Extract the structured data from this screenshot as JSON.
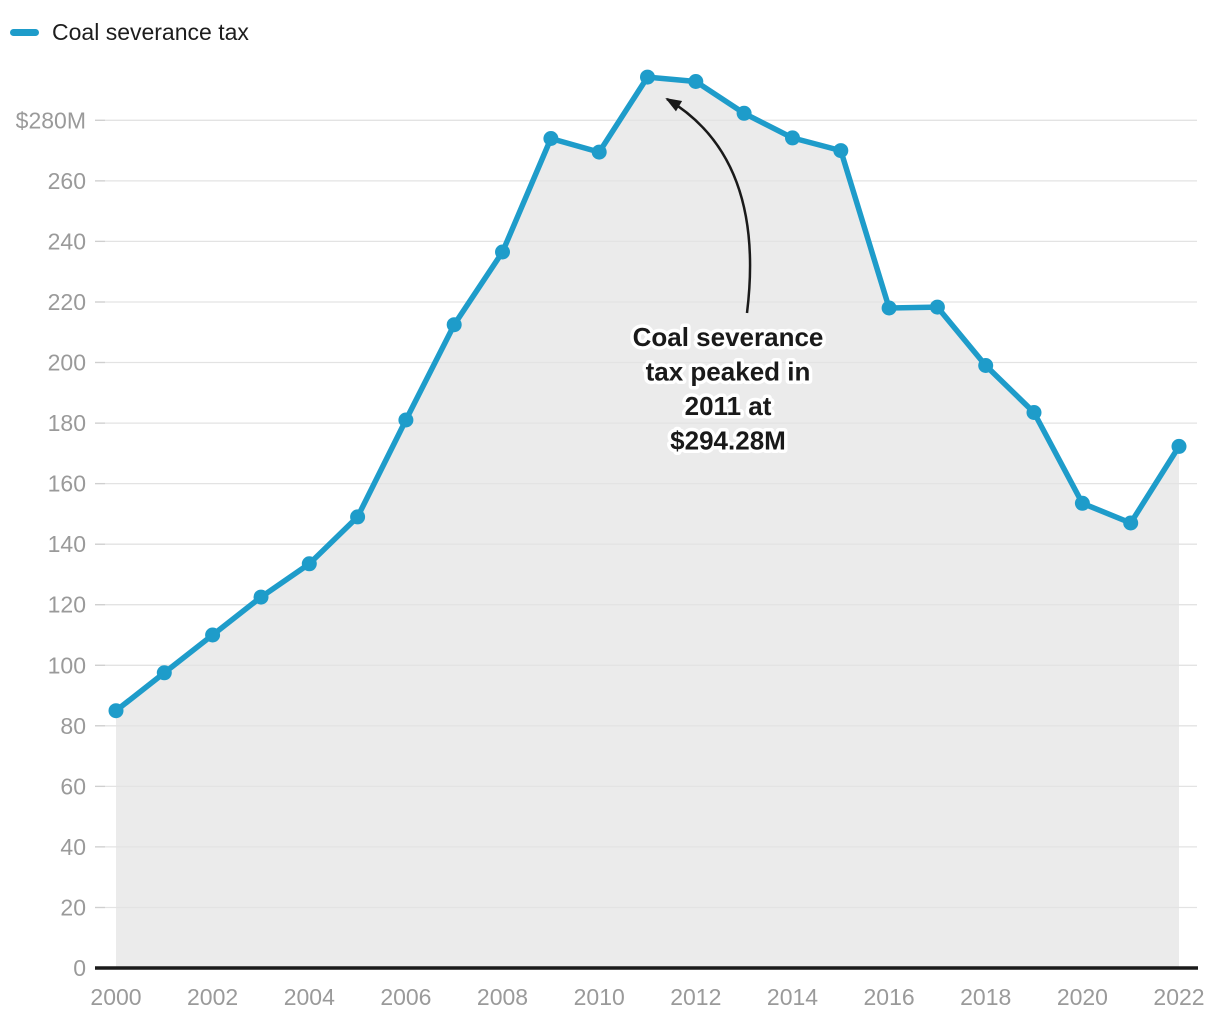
{
  "legend": {
    "label": "Coal severance tax"
  },
  "colors": {
    "line": "#1e9cca",
    "area": "#ebebeb",
    "grid": "#e3e3e3",
    "grid_tick": "#cfcfcf",
    "axis": "#1a1a1a",
    "axis_label": "#9a9a9a",
    "annotation_text": "#1a1a1a",
    "annotation_halo": "#ffffff",
    "arrow": "#1a1a1a",
    "background": "#ffffff"
  },
  "chart_data": {
    "type": "line",
    "title": "",
    "xlabel": "",
    "ylabel": "",
    "grid": true,
    "legend_position": "top-left",
    "series": [
      {
        "name": "Coal severance tax",
        "x": [
          2000,
          2001,
          2002,
          2003,
          2004,
          2005,
          2006,
          2007,
          2008,
          2009,
          2010,
          2011,
          2012,
          2013,
          2014,
          2015,
          2016,
          2017,
          2018,
          2019,
          2020,
          2021,
          2022
        ],
        "values": [
          85,
          97.5,
          110,
          122.5,
          133.5,
          149,
          181,
          212.5,
          236.5,
          274,
          269.5,
          294.28,
          292.8,
          282.3,
          274.2,
          270,
          218,
          218.3,
          199,
          183.5,
          153.5,
          147,
          172.3
        ]
      }
    ],
    "x_axis": {
      "tick_years": [
        2000,
        2002,
        2004,
        2006,
        2008,
        2010,
        2012,
        2014,
        2016,
        2018,
        2020,
        2022
      ],
      "tick_labels": [
        "2000",
        "2002",
        "2004",
        "2006",
        "2008",
        "2010",
        "2012",
        "2014",
        "2016",
        "2018",
        "2020",
        "2022"
      ]
    },
    "y_axis": {
      "ticks": [
        0,
        20,
        40,
        60,
        80,
        100,
        120,
        140,
        160,
        180,
        200,
        220,
        240,
        260,
        280
      ],
      "tick_labels": [
        "0",
        "20",
        "40",
        "60",
        "80",
        "100",
        "120",
        "140",
        "160",
        "180",
        "200",
        "220",
        "240",
        "260",
        "$280M"
      ],
      "range": [
        0,
        294.28
      ]
    },
    "annotation": {
      "lines": [
        "Coal severance",
        "tax peaked in",
        "2011 at",
        "$294.28M"
      ],
      "target_year": 2011,
      "target_value": 294.28
    }
  }
}
